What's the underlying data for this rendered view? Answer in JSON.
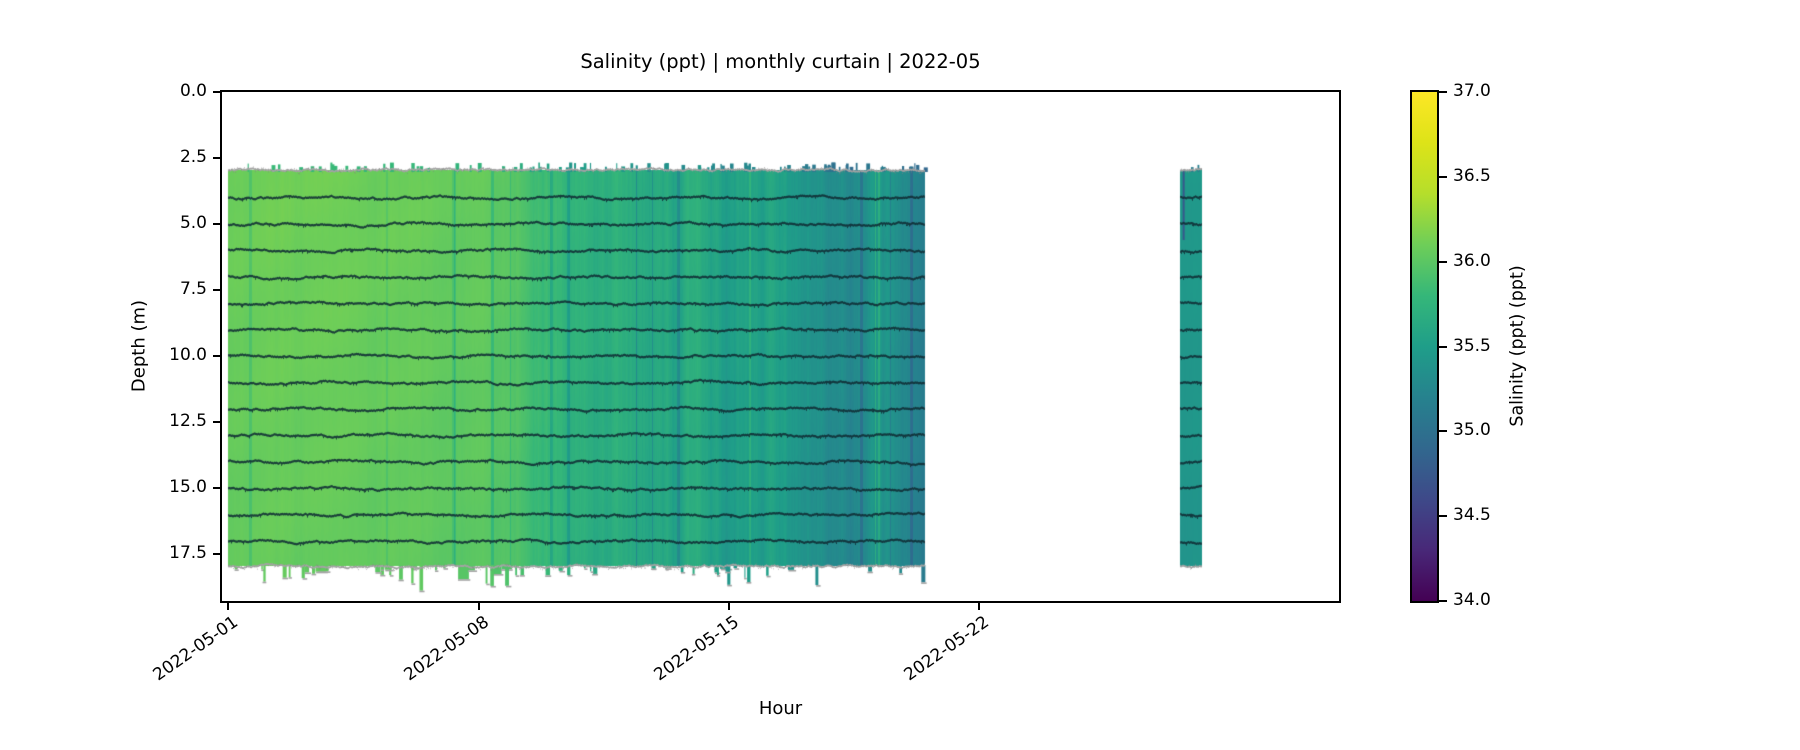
{
  "chart_data": {
    "type": "heatmap",
    "variant": "time-depth curtain plot",
    "title": "Salinity (ppt) | monthly curtain | 2022-05",
    "xlabel": "Hour",
    "ylabel": "Depth (m)",
    "colorbar_label": "Salinity (ppt) (ppt)",
    "colormap": "viridis",
    "clim": [
      34.0,
      37.0
    ],
    "x_tick_labels": [
      "2022-05-01",
      "2022-05-08",
      "2022-05-15",
      "2022-05-22"
    ],
    "x_tick_days": [
      0,
      7,
      14,
      21
    ],
    "xlim_days": [
      -0.17,
      31.05
    ],
    "y_ticks": [
      0.0,
      2.5,
      5.0,
      7.5,
      10.0,
      12.5,
      15.0,
      17.5
    ],
    "y_tick_labels": [
      "0.0",
      "2.5",
      "5.0",
      "7.5",
      "10.0",
      "12.5",
      "15.0",
      "17.5"
    ],
    "ylim": [
      0,
      19.26
    ],
    "colorbar_ticks": [
      37.0,
      36.5,
      36.0,
      35.5,
      35.0,
      34.5,
      34.0
    ],
    "colorbar_tick_labels": [
      "37.0",
      "36.5",
      "36.0",
      "35.5",
      "35.0",
      "34.5",
      "34.0"
    ],
    "colormap_stops": [
      [
        0.0,
        "#440154"
      ],
      [
        0.1,
        "#482878"
      ],
      [
        0.2,
        "#3e4989"
      ],
      [
        0.3,
        "#31688e"
      ],
      [
        0.4,
        "#26828e"
      ],
      [
        0.5,
        "#1f9e89"
      ],
      [
        0.6,
        "#35b779"
      ],
      [
        0.7,
        "#6ece58"
      ],
      [
        0.8,
        "#b5de2b"
      ],
      [
        0.9,
        "#dde318"
      ],
      [
        1.0,
        "#fde725"
      ]
    ],
    "depth_range_m": [
      2.95,
      17.95
    ],
    "sensor_trace_depths_m": [
      4,
      5,
      6,
      7,
      8,
      9,
      10,
      11,
      12,
      13,
      14,
      15,
      16,
      17
    ],
    "boundary_line_color": "#a3a3a3",
    "trace_color": "rgba(16,44,52,0.88)",
    "segments": [
      {
        "name": "main-deployment",
        "day_start": 0.0,
        "day_end": 19.45,
        "salinity_keyframes": [
          [
            0.0,
            36.1
          ],
          [
            6.5,
            36.05
          ],
          [
            7.8,
            36.0
          ],
          [
            8.6,
            35.82
          ],
          [
            10.0,
            35.75
          ],
          [
            12.0,
            35.63
          ],
          [
            14.0,
            35.52
          ],
          [
            16.0,
            35.42
          ],
          [
            18.0,
            35.34
          ],
          [
            19.45,
            35.3
          ]
        ],
        "noise_keyframes": [
          [
            0.0,
            0.03
          ],
          [
            7.6,
            0.035
          ],
          [
            8.8,
            0.105
          ],
          [
            12.0,
            0.115
          ],
          [
            17.0,
            0.105
          ],
          [
            19.45,
            0.095
          ]
        ],
        "spike_count": 90,
        "drip_count": 58
      },
      {
        "name": "isolated-cast",
        "day_start": 26.6,
        "day_end": 27.2,
        "salinity_keyframes": [
          [
            26.6,
            35.45
          ],
          [
            27.2,
            35.42
          ]
        ],
        "noise_keyframes": [
          [
            26.6,
            0.035
          ],
          [
            27.2,
            0.035
          ]
        ],
        "spike_count": 2,
        "drip_count": 0,
        "anomaly_streak": {
          "day": 26.68,
          "depth_top": 2.95,
          "depth_bottom": 5.6,
          "salinity": 34.75
        }
      }
    ]
  }
}
